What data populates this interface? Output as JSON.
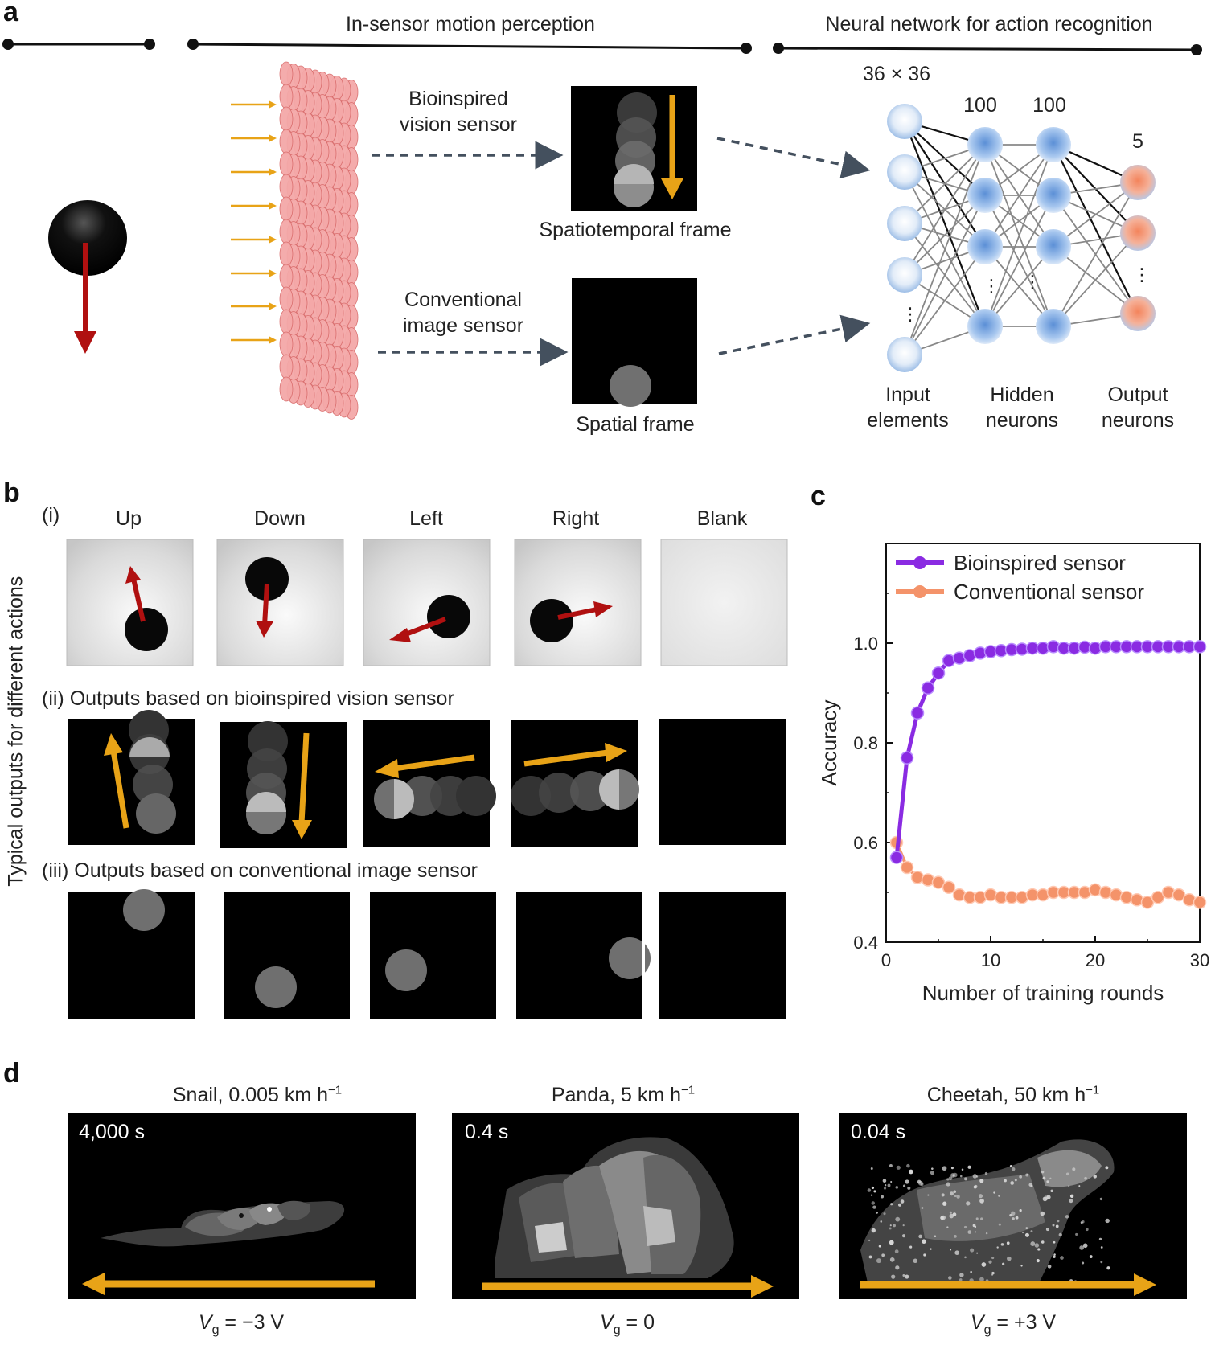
{
  "panel_labels": {
    "a": "a",
    "b": "b",
    "c": "c",
    "d": "d"
  },
  "panel_a": {
    "section_sensor": "In-sensor motion perception",
    "section_network": "Neural network for action recognition",
    "bio_sensor_label_1": "Bioinspired",
    "bio_sensor_label_2": "vision sensor",
    "conv_sensor_label_1": "Conventional",
    "conv_sensor_label_2": "image sensor",
    "spatiotemporal_caption": "Spatiotemporal  frame",
    "spatial_caption": "Spatial frame",
    "input_size": "36 × 36",
    "hidden1_size": "100",
    "hidden2_size": "100",
    "output_size": "5",
    "input_caption_1": "Input",
    "input_caption_2": "elements",
    "hidden_caption_1": "Hidden",
    "hidden_caption_2": "neurons",
    "output_caption_1": "Output",
    "output_caption_2": "neurons",
    "ellipsis": "⋮"
  },
  "panel_b": {
    "row_i_label": "(i)",
    "row_ii_label": "(ii)  Outputs based on bioinspired vision sensor",
    "row_iii_label": "(iii) Outputs based on conventional image sensor",
    "y_title": "Typical outputs for different actions",
    "actions": [
      "Up",
      "Down",
      "Left",
      "Right",
      "Blank"
    ]
  },
  "chart_data": {
    "type": "line",
    "xlabel": "Number of training rounds",
    "ylabel": "Accuracy",
    "xlim": [
      0,
      30
    ],
    "ylim": [
      0.4,
      1.2
    ],
    "xticks": [
      0,
      10,
      20,
      30
    ],
    "yticks": [
      0.4,
      0.6,
      0.8,
      1.0
    ],
    "ytick_labels": [
      "0.4",
      "0.6",
      "0.8",
      "1.0"
    ],
    "legend_position": "top",
    "x": [
      1,
      2,
      3,
      4,
      5,
      6,
      7,
      8,
      9,
      10,
      11,
      12,
      13,
      14,
      15,
      16,
      17,
      18,
      19,
      20,
      21,
      22,
      23,
      24,
      25,
      26,
      27,
      28,
      29,
      30
    ],
    "series": [
      {
        "name": "Bioinspired sensor",
        "color": "#8a2be2",
        "values": [
          0.57,
          0.77,
          0.86,
          0.91,
          0.94,
          0.965,
          0.97,
          0.975,
          0.98,
          0.983,
          0.985,
          0.987,
          0.988,
          0.99,
          0.99,
          0.993,
          0.99,
          0.99,
          0.992,
          0.99,
          0.993,
          0.993,
          0.993,
          0.993,
          0.993,
          0.993,
          0.993,
          0.993,
          0.993,
          0.993
        ]
      },
      {
        "name": "Conventional sensor",
        "color": "#f4936a",
        "values": [
          0.6,
          0.55,
          0.53,
          0.525,
          0.52,
          0.51,
          0.495,
          0.49,
          0.49,
          0.495,
          0.49,
          0.49,
          0.49,
          0.495,
          0.495,
          0.5,
          0.5,
          0.5,
          0.5,
          0.505,
          0.5,
          0.495,
          0.49,
          0.485,
          0.48,
          0.49,
          0.5,
          0.495,
          0.485,
          0.48
        ]
      }
    ]
  },
  "panel_d": {
    "animals": [
      {
        "title": "Snail, 0.005 km h",
        "sup": "−1",
        "time": "4,000 s",
        "vg_value": " = −3 V"
      },
      {
        "title": "Panda, 5 km h",
        "sup": "−1",
        "time": "0.4 s",
        "vg_value": " = 0"
      },
      {
        "title": "Cheetah, 50 km h",
        "sup": "−1",
        "time": "0.04 s",
        "vg_value": " = +3 V"
      }
    ],
    "vg_symbol": "V",
    "vg_sub": "g"
  },
  "colors": {
    "orange_arrow": "#e8a317",
    "red_arrow": "#b01010",
    "sensor_pink": "#f4a8a8",
    "node_blue": "#8fb6e6",
    "node_orange": "#f39a76"
  }
}
